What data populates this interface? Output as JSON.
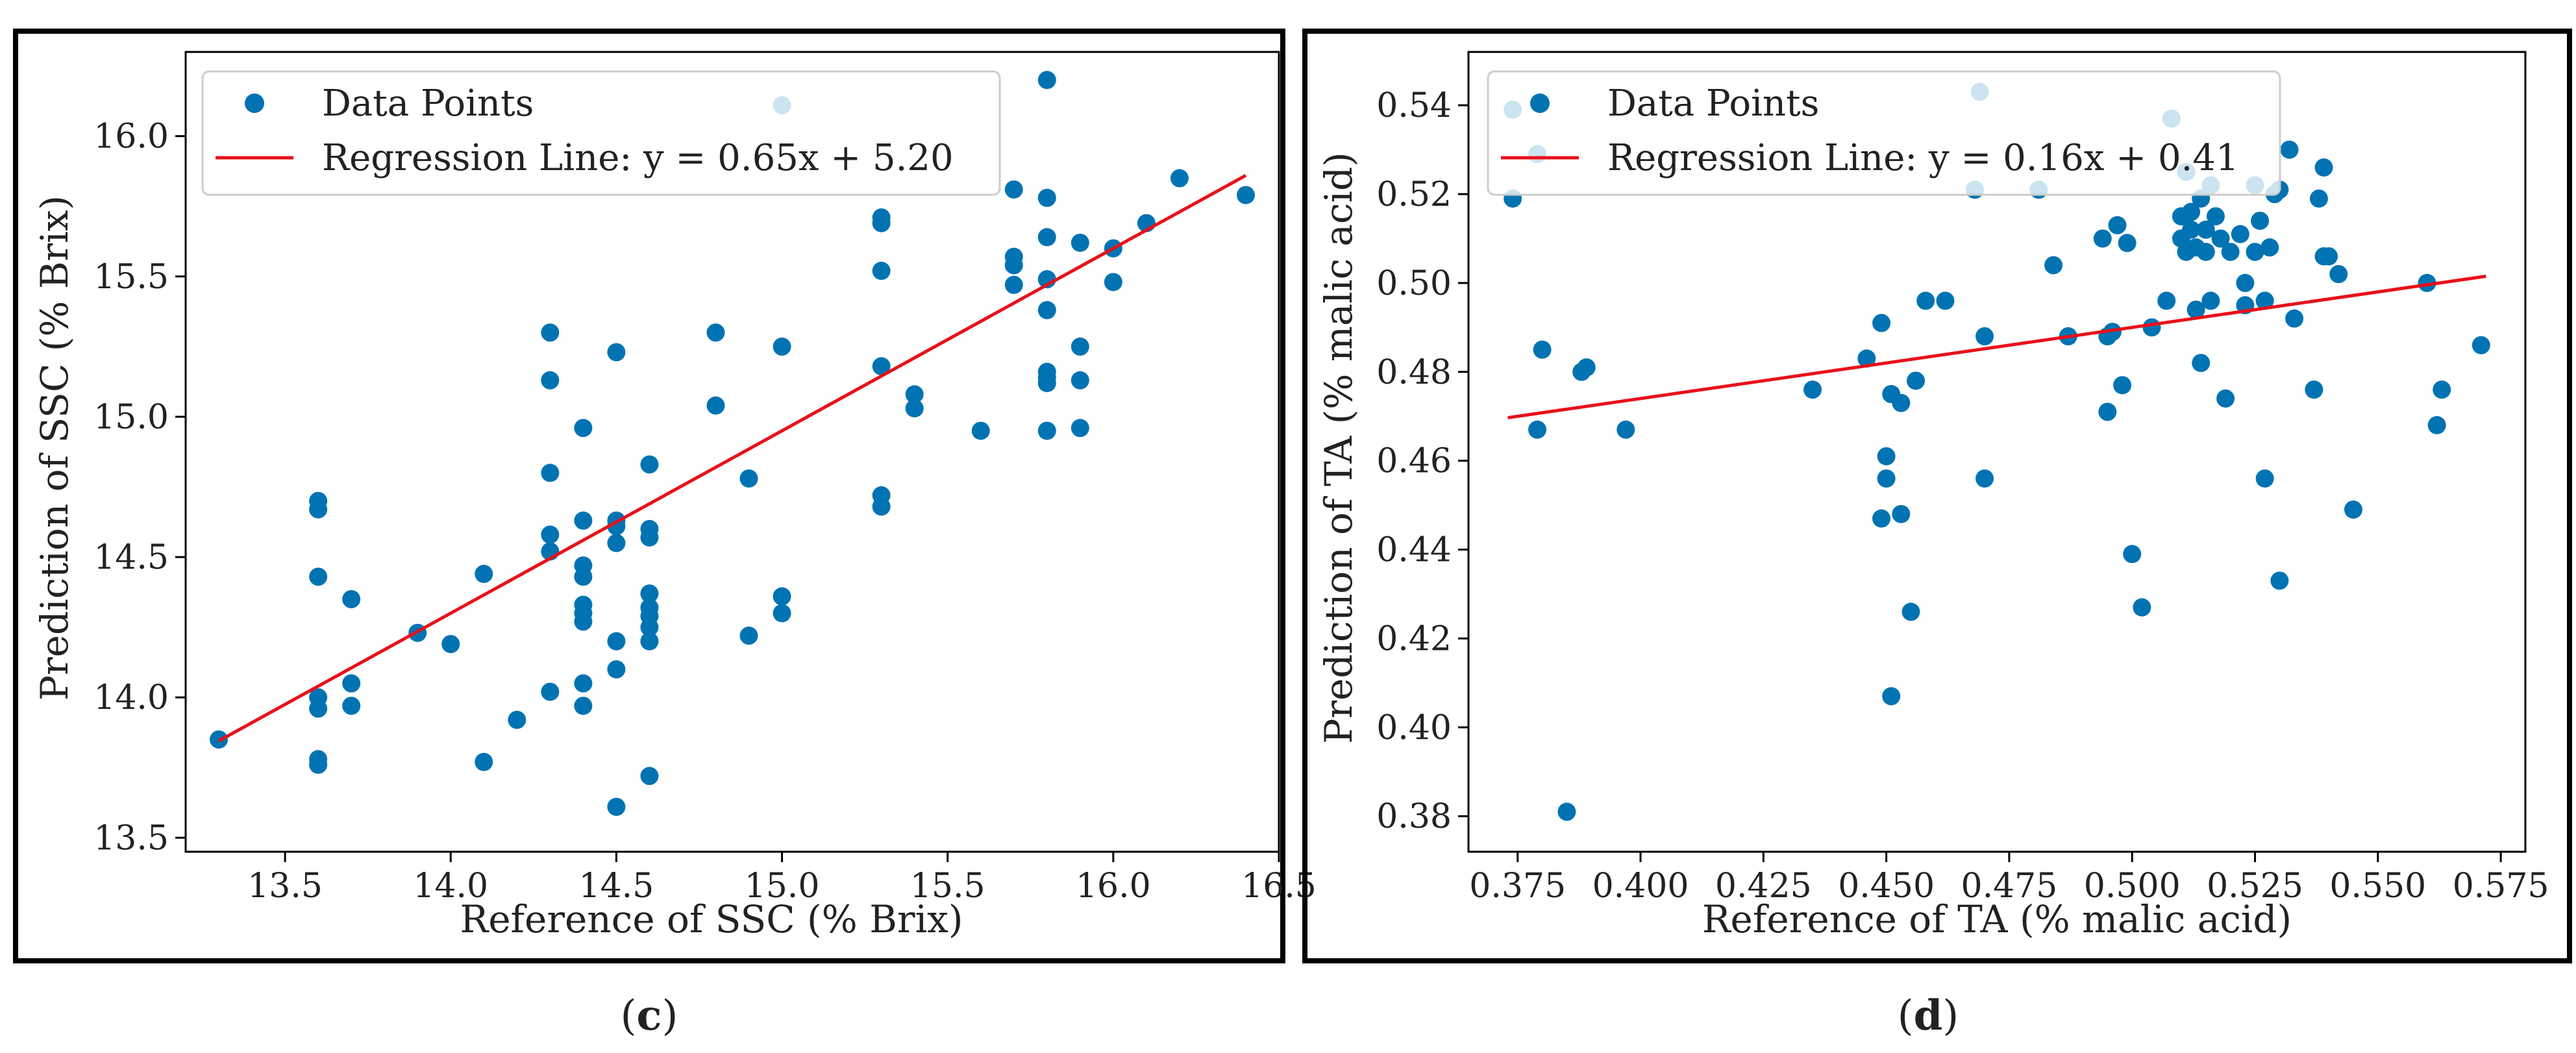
{
  "colors": {
    "point": "#0173b2",
    "line": "#e8101a",
    "frame": "#000000"
  },
  "panels": [
    {
      "caption_open": "(",
      "caption_letter": "c",
      "caption_close": ")",
      "legend": {
        "points_label": "Data Points",
        "line_label": "Regression Line: y = 0.65x + 5.20"
      },
      "chart_data": {
        "type": "scatter",
        "xlabel": "Reference of SSC (% Brix)",
        "ylabel": "Prediction of SSC (% Brix)",
        "xlim": [
          13.2,
          16.5
        ],
        "ylim": [
          13.45,
          16.3
        ],
        "xticks": [
          13.5,
          14.0,
          14.5,
          15.0,
          15.5,
          16.0,
          16.5
        ],
        "xtick_labels": [
          "13.5",
          "14.0",
          "14.5",
          "15.0",
          "15.5",
          "16.0",
          "16.5"
        ],
        "yticks": [
          13.5,
          14.0,
          14.5,
          15.0,
          15.5,
          16.0
        ],
        "ytick_labels": [
          "13.5",
          "14.0",
          "14.5",
          "15.0",
          "15.5",
          "16.0"
        ],
        "grid": false,
        "legend_position": "top-left",
        "regression": {
          "slope": 0.65,
          "intercept": 5.2,
          "x_range": [
            13.3,
            16.4
          ]
        },
        "points": [
          [
            13.3,
            13.85
          ],
          [
            13.6,
            14.7
          ],
          [
            13.6,
            14.67
          ],
          [
            13.6,
            14.43
          ],
          [
            13.6,
            14.0
          ],
          [
            13.6,
            13.96
          ],
          [
            13.6,
            13.78
          ],
          [
            13.6,
            13.76
          ],
          [
            13.7,
            14.35
          ],
          [
            13.7,
            14.05
          ],
          [
            13.7,
            13.97
          ],
          [
            13.9,
            14.23
          ],
          [
            14.0,
            14.19
          ],
          [
            14.1,
            14.44
          ],
          [
            14.1,
            13.77
          ],
          [
            14.2,
            13.92
          ],
          [
            14.3,
            15.3
          ],
          [
            14.3,
            15.13
          ],
          [
            14.3,
            14.8
          ],
          [
            14.3,
            14.58
          ],
          [
            14.3,
            14.52
          ],
          [
            14.3,
            14.02
          ],
          [
            14.4,
            14.96
          ],
          [
            14.4,
            14.63
          ],
          [
            14.4,
            14.47
          ],
          [
            14.4,
            14.43
          ],
          [
            14.4,
            14.33
          ],
          [
            14.4,
            14.3
          ],
          [
            14.4,
            14.27
          ],
          [
            14.4,
            14.05
          ],
          [
            14.4,
            13.97
          ],
          [
            14.5,
            15.23
          ],
          [
            14.5,
            14.63
          ],
          [
            14.5,
            14.61
          ],
          [
            14.5,
            14.55
          ],
          [
            14.5,
            14.2
          ],
          [
            14.5,
            14.1
          ],
          [
            14.5,
            13.61
          ],
          [
            14.6,
            14.83
          ],
          [
            14.6,
            14.6
          ],
          [
            14.6,
            14.57
          ],
          [
            14.6,
            14.37
          ],
          [
            14.6,
            14.32
          ],
          [
            14.6,
            14.29
          ],
          [
            14.6,
            14.25
          ],
          [
            14.6,
            14.2
          ],
          [
            14.6,
            13.72
          ],
          [
            14.8,
            15.3
          ],
          [
            14.8,
            15.04
          ],
          [
            14.9,
            14.78
          ],
          [
            14.9,
            14.22
          ],
          [
            15.0,
            16.11
          ],
          [
            15.0,
            15.25
          ],
          [
            15.0,
            14.36
          ],
          [
            15.0,
            14.3
          ],
          [
            15.3,
            15.71
          ],
          [
            15.3,
            15.69
          ],
          [
            15.3,
            15.52
          ],
          [
            15.3,
            15.18
          ],
          [
            15.3,
            14.72
          ],
          [
            15.3,
            14.68
          ],
          [
            15.4,
            15.08
          ],
          [
            15.4,
            15.03
          ],
          [
            15.6,
            14.95
          ],
          [
            15.7,
            15.81
          ],
          [
            15.7,
            15.57
          ],
          [
            15.7,
            15.54
          ],
          [
            15.7,
            15.47
          ],
          [
            15.8,
            16.2
          ],
          [
            15.8,
            15.78
          ],
          [
            15.8,
            15.64
          ],
          [
            15.8,
            15.49
          ],
          [
            15.8,
            15.38
          ],
          [
            15.8,
            15.16
          ],
          [
            15.8,
            15.14
          ],
          [
            15.8,
            15.12
          ],
          [
            15.8,
            14.95
          ],
          [
            15.9,
            15.62
          ],
          [
            15.9,
            15.25
          ],
          [
            15.9,
            15.13
          ],
          [
            15.9,
            14.96
          ],
          [
            16.0,
            15.6
          ],
          [
            16.0,
            15.48
          ],
          [
            16.1,
            15.69
          ],
          [
            16.2,
            15.85
          ],
          [
            16.4,
            15.79
          ]
        ]
      }
    },
    {
      "caption_open": "(",
      "caption_letter": "d",
      "caption_close": ")",
      "legend": {
        "points_label": "Data Points",
        "line_label": "Regression Line: y = 0.16x + 0.41"
      },
      "chart_data": {
        "type": "scatter",
        "xlabel": "Reference of TA (% malic acid)",
        "ylabel": "Prediction of TA (% malic acid)",
        "xlim": [
          0.365,
          0.58
        ],
        "ylim": [
          0.372,
          0.552
        ],
        "xticks": [
          0.375,
          0.4,
          0.425,
          0.45,
          0.475,
          0.5,
          0.525,
          0.55,
          0.575
        ],
        "xtick_labels": [
          "0.375",
          "0.400",
          "0.425",
          "0.450",
          "0.475",
          "0.500",
          "0.525",
          "0.550",
          "0.575"
        ],
        "yticks": [
          0.38,
          0.4,
          0.42,
          0.44,
          0.46,
          0.48,
          0.5,
          0.52,
          0.54
        ],
        "ytick_labels": [
          "0.38",
          "0.40",
          "0.42",
          "0.44",
          "0.46",
          "0.48",
          "0.50",
          "0.52",
          "0.54"
        ],
        "grid": false,
        "legend_position": "top-left",
        "regression": {
          "slope": 0.16,
          "intercept": 0.41,
          "x_range": [
            0.373,
            0.572
          ]
        },
        "points": [
          [
            0.374,
            0.539
          ],
          [
            0.374,
            0.519
          ],
          [
            0.379,
            0.529
          ],
          [
            0.379,
            0.467
          ],
          [
            0.38,
            0.485
          ],
          [
            0.385,
            0.381
          ],
          [
            0.388,
            0.48
          ],
          [
            0.389,
            0.481
          ],
          [
            0.397,
            0.467
          ],
          [
            0.435,
            0.476
          ],
          [
            0.446,
            0.483
          ],
          [
            0.449,
            0.491
          ],
          [
            0.449,
            0.447
          ],
          [
            0.45,
            0.461
          ],
          [
            0.45,
            0.456
          ],
          [
            0.451,
            0.475
          ],
          [
            0.451,
            0.407
          ],
          [
            0.453,
            0.473
          ],
          [
            0.453,
            0.448
          ],
          [
            0.455,
            0.426
          ],
          [
            0.456,
            0.478
          ],
          [
            0.458,
            0.496
          ],
          [
            0.462,
            0.496
          ],
          [
            0.468,
            0.521
          ],
          [
            0.469,
            0.543
          ],
          [
            0.47,
            0.488
          ],
          [
            0.47,
            0.456
          ],
          [
            0.481,
            0.521
          ],
          [
            0.484,
            0.504
          ],
          [
            0.487,
            0.488
          ],
          [
            0.494,
            0.51
          ],
          [
            0.495,
            0.488
          ],
          [
            0.495,
            0.471
          ],
          [
            0.496,
            0.489
          ],
          [
            0.497,
            0.513
          ],
          [
            0.498,
            0.477
          ],
          [
            0.499,
            0.509
          ],
          [
            0.5,
            0.439
          ],
          [
            0.502,
            0.427
          ],
          [
            0.504,
            0.49
          ],
          [
            0.507,
            0.496
          ],
          [
            0.508,
            0.537
          ],
          [
            0.51,
            0.515
          ],
          [
            0.51,
            0.51
          ],
          [
            0.511,
            0.507
          ],
          [
            0.511,
            0.525
          ],
          [
            0.512,
            0.512
          ],
          [
            0.512,
            0.516
          ],
          [
            0.513,
            0.508
          ],
          [
            0.513,
            0.494
          ],
          [
            0.514,
            0.519
          ],
          [
            0.514,
            0.482
          ],
          [
            0.515,
            0.512
          ],
          [
            0.515,
            0.507
          ],
          [
            0.516,
            0.522
          ],
          [
            0.516,
            0.496
          ],
          [
            0.517,
            0.515
          ],
          [
            0.518,
            0.51
          ],
          [
            0.519,
            0.474
          ],
          [
            0.52,
            0.507
          ],
          [
            0.522,
            0.511
          ],
          [
            0.523,
            0.5
          ],
          [
            0.523,
            0.495
          ],
          [
            0.525,
            0.522
          ],
          [
            0.525,
            0.507
          ],
          [
            0.526,
            0.514
          ],
          [
            0.527,
            0.496
          ],
          [
            0.527,
            0.456
          ],
          [
            0.528,
            0.508
          ],
          [
            0.529,
            0.52
          ],
          [
            0.53,
            0.433
          ],
          [
            0.53,
            0.521
          ],
          [
            0.532,
            0.53
          ],
          [
            0.533,
            0.492
          ],
          [
            0.537,
            0.476
          ],
          [
            0.538,
            0.519
          ],
          [
            0.539,
            0.506
          ],
          [
            0.539,
            0.526
          ],
          [
            0.54,
            0.506
          ],
          [
            0.542,
            0.502
          ],
          [
            0.545,
            0.449
          ],
          [
            0.56,
            0.5
          ],
          [
            0.562,
            0.468
          ],
          [
            0.563,
            0.476
          ],
          [
            0.571,
            0.486
          ]
        ]
      }
    }
  ]
}
